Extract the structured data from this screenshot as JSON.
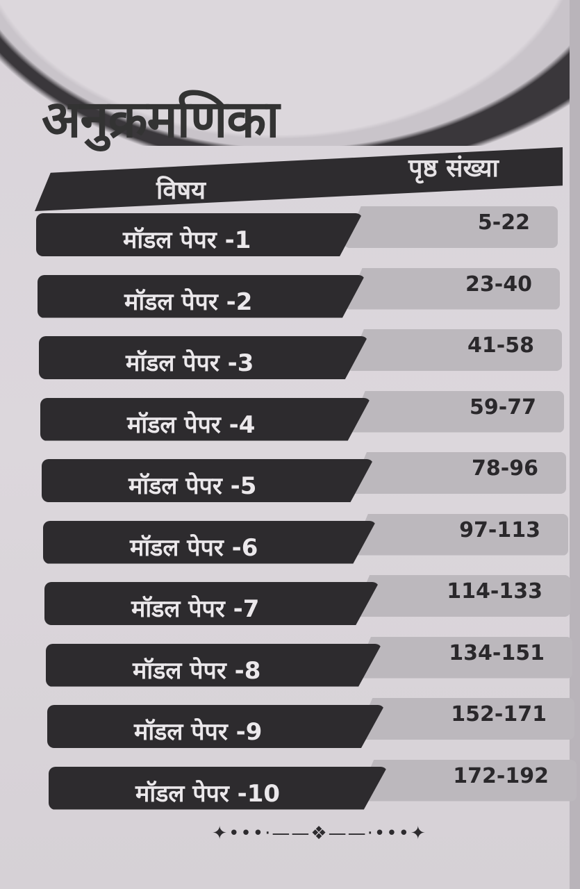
{
  "title": "अनुक्रमणिका",
  "header": {
    "subject": "विषय",
    "pages": "पृष्ठ संख्या"
  },
  "rows": [
    {
      "subject": "मॉडल पेपर -1",
      "pages": "5-22"
    },
    {
      "subject": "मॉडल पेपर -2",
      "pages": "23-40"
    },
    {
      "subject": "मॉडल पेपर -3",
      "pages": "41-58"
    },
    {
      "subject": "मॉडल पेपर -4",
      "pages": "59-77"
    },
    {
      "subject": "मॉडल पेपर -5",
      "pages": "78-96"
    },
    {
      "subject": "मॉडल पेपर -6",
      "pages": "97-113"
    },
    {
      "subject": "मॉडल पेपर -7",
      "pages": "114-133"
    },
    {
      "subject": "मॉडल पेपर -8",
      "pages": "134-151"
    },
    {
      "subject": "मॉडल पेपर -9",
      "pages": "152-171"
    },
    {
      "subject": "मॉडल पेपर -10",
      "pages": "172-192"
    }
  ],
  "ornament_icon": "decorative-divider-icon",
  "colors": {
    "dark_bar": "#2d2b2e",
    "light_bar": "#bcb8bd",
    "page": "#dcd7dc"
  }
}
